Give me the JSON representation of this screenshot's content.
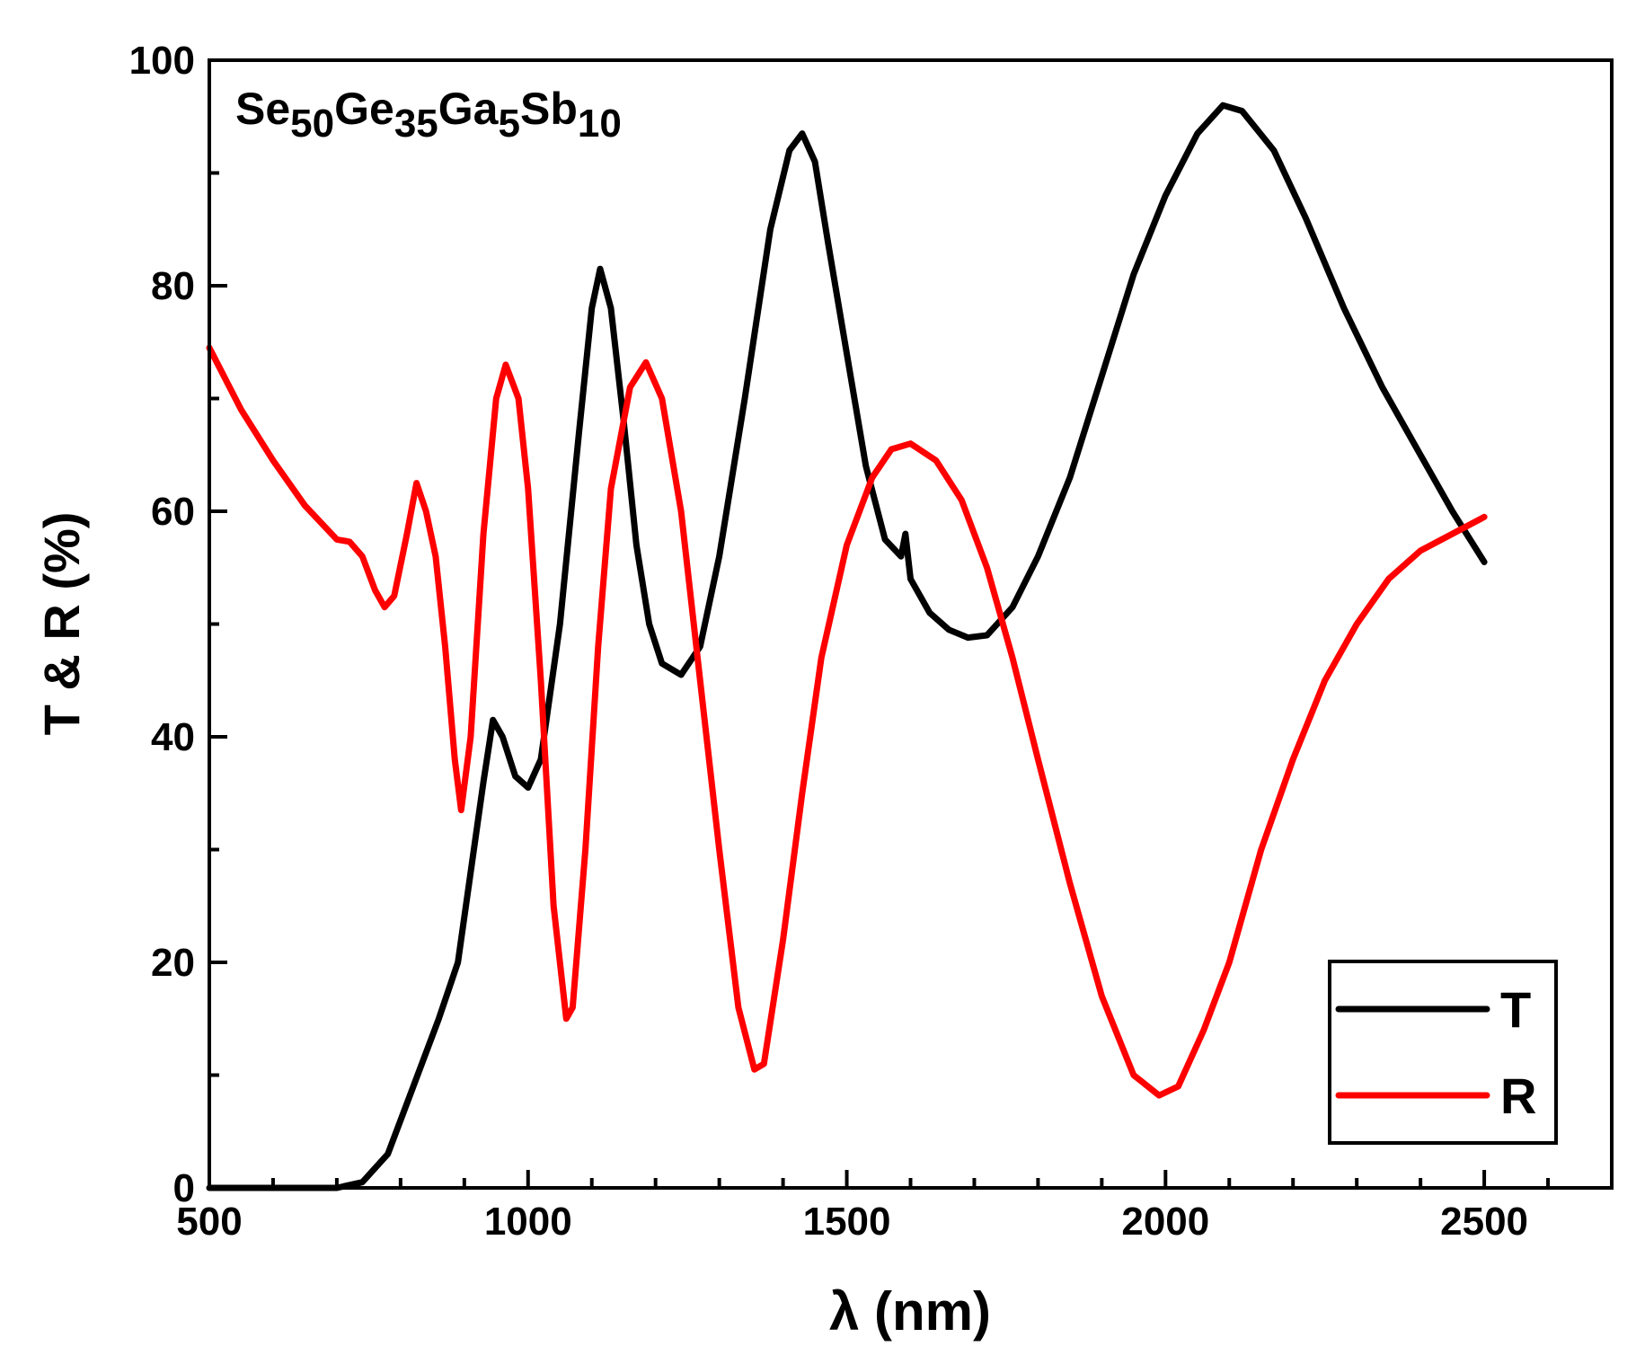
{
  "chart_data": {
    "type": "line",
    "annotation": "Se50Ge35Ga5Sb10",
    "xlabel": "λ (nm)",
    "ylabel": "T & R (%)",
    "xlim": [
      500,
      2700
    ],
    "ylim": [
      0,
      100
    ],
    "xticks": [
      500,
      1000,
      1500,
      2000,
      2500
    ],
    "yticks": [
      0,
      20,
      40,
      60,
      80,
      100
    ],
    "xminorticks": [
      600,
      700,
      800,
      900,
      1100,
      1200,
      1300,
      1400,
      1600,
      1700,
      1800,
      1900,
      2100,
      2200,
      2300,
      2400,
      2600
    ],
    "yminorticks": [
      10,
      30,
      50,
      70,
      90
    ],
    "legend": "lower right",
    "series": [
      {
        "name": "T",
        "color": "#000000",
        "x": [
          500,
          700,
          740,
          780,
          820,
          860,
          890,
          910,
          930,
          945,
          960,
          980,
          1000,
          1020,
          1050,
          1080,
          1100,
          1113,
          1130,
          1150,
          1170,
          1190,
          1210,
          1240,
          1270,
          1300,
          1340,
          1380,
          1410,
          1430,
          1450,
          1470,
          1500,
          1530,
          1560,
          1585,
          1592,
          1600,
          1630,
          1660,
          1690,
          1720,
          1760,
          1800,
          1850,
          1900,
          1950,
          2000,
          2050,
          2090,
          2120,
          2170,
          2220,
          2280,
          2340,
          2400,
          2450,
          2500
        ],
        "values": [
          0,
          0,
          0.5,
          3,
          9,
          15,
          20,
          28,
          36,
          41.5,
          40,
          36.5,
          35.5,
          38,
          50,
          67,
          78,
          81.5,
          78,
          68,
          57,
          50,
          46.5,
          45.5,
          48,
          56,
          70,
          85,
          92,
          93.5,
          91,
          84,
          74,
          64,
          57.5,
          56,
          58,
          54,
          51,
          49.5,
          48.8,
          49,
          51.5,
          56,
          63,
          72,
          81,
          88,
          93.5,
          96,
          95.5,
          92,
          86,
          78,
          71,
          65,
          60,
          55.5
        ]
      },
      {
        "name": "R",
        "color": "#ff0000",
        "x": [
          500,
          550,
          600,
          650,
          700,
          720,
          740,
          760,
          775,
          790,
          810,
          825,
          840,
          855,
          870,
          885,
          895,
          910,
          930,
          950,
          965,
          985,
          1000,
          1020,
          1040,
          1060,
          1070,
          1090,
          1110,
          1130,
          1160,
          1185,
          1210,
          1240,
          1270,
          1300,
          1330,
          1355,
          1370,
          1400,
          1430,
          1460,
          1500,
          1540,
          1570,
          1600,
          1640,
          1680,
          1720,
          1760,
          1800,
          1850,
          1900,
          1950,
          1990,
          2020,
          2060,
          2100,
          2150,
          2200,
          2250,
          2300,
          2350,
          2400,
          2450,
          2500
        ],
        "values": [
          74.5,
          69,
          64.5,
          60.5,
          57.5,
          57.3,
          56,
          53,
          51.5,
          52.5,
          58,
          62.5,
          60,
          56,
          48,
          38,
          33.5,
          40,
          58,
          70,
          73,
          70,
          62,
          45,
          25,
          15,
          16,
          30,
          48,
          62,
          71,
          73.2,
          70,
          60,
          45,
          30,
          16,
          10.5,
          11,
          22,
          35,
          47,
          57,
          63,
          65.5,
          66,
          64.5,
          61,
          55,
          47,
          38,
          27,
          17,
          10,
          8.2,
          9,
          14,
          20,
          30,
          38,
          45,
          50,
          54,
          56.5,
          58,
          59.5
        ]
      }
    ]
  }
}
